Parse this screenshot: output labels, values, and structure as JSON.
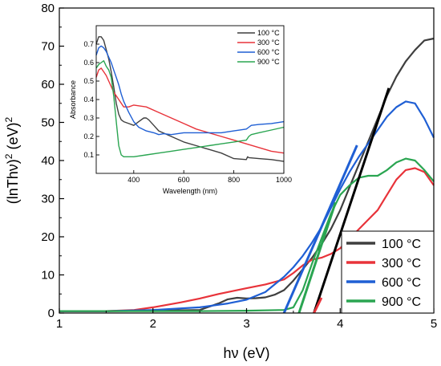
{
  "chart_data": [
    {
      "type": "line",
      "xlabel": "hν (eV)",
      "ylabel_main": "(lnThν)",
      "ylabel_sup1": "2",
      "ylabel_unit": " (eV)",
      "ylabel_sup2": "2",
      "xlim": [
        1,
        5
      ],
      "ylim": [
        0,
        80
      ],
      "xticks": [
        1,
        2,
        3,
        4,
        5
      ],
      "yticks": [
        0,
        10,
        20,
        30,
        40,
        50,
        60,
        70,
        80
      ],
      "legend_position": "bottom-right",
      "series": [
        {
          "name": "100 °C",
          "color": "#3f3f3f",
          "x": [
            1.0,
            1.5,
            2.0,
            2.5,
            2.7,
            2.8,
            2.9,
            3.0,
            3.1,
            3.2,
            3.3,
            3.4,
            3.5,
            3.6,
            3.7,
            3.8,
            3.9,
            4.0,
            4.1,
            4.2,
            4.3,
            4.4,
            4.5,
            4.6,
            4.7,
            4.8,
            4.9,
            5.0
          ],
          "y": [
            0.5,
            0.5,
            0.6,
            0.8,
            2.5,
            3.6,
            4.0,
            3.8,
            3.9,
            4.1,
            4.8,
            6.0,
            8.5,
            11.5,
            14.5,
            18.0,
            22.0,
            27.0,
            33.0,
            39.0,
            45.0,
            51.0,
            57.0,
            62.0,
            66.0,
            69.0,
            71.5,
            72.0
          ]
        },
        {
          "name": "300 °C",
          "color": "#e8333a",
          "x": [
            1.0,
            1.5,
            1.8,
            2.0,
            2.3,
            2.5,
            2.7,
            3.0,
            3.2,
            3.4,
            3.5,
            3.6,
            3.7,
            3.8,
            3.9,
            4.0,
            4.1,
            4.2,
            4.3,
            4.4,
            4.5,
            4.6,
            4.7,
            4.8,
            4.9,
            5.0
          ],
          "y": [
            0.5,
            0.5,
            0.8,
            1.5,
            2.8,
            3.8,
            5.0,
            6.5,
            7.5,
            8.8,
            10.5,
            12.5,
            14.0,
            14.5,
            15.5,
            17.0,
            19.5,
            22.0,
            24.5,
            27.0,
            31.0,
            35.0,
            37.5,
            38.0,
            37.0,
            33.5
          ]
        },
        {
          "name": "600 °C",
          "color": "#1f5fd4",
          "x": [
            1.0,
            1.5,
            2.0,
            2.5,
            2.8,
            3.0,
            3.2,
            3.3,
            3.4,
            3.5,
            3.6,
            3.7,
            3.8,
            3.9,
            4.0,
            4.1,
            4.2,
            4.3,
            4.4,
            4.5,
            4.6,
            4.7,
            4.8,
            4.9,
            5.0
          ],
          "y": [
            0.5,
            0.5,
            0.8,
            1.5,
            2.5,
            3.5,
            5.5,
            7.5,
            9.5,
            12.0,
            15.0,
            18.5,
            22.5,
            27.5,
            32.5,
            37.0,
            41.0,
            44.5,
            48.0,
            51.5,
            54.0,
            55.5,
            55.0,
            51.0,
            46.0
          ]
        },
        {
          "name": "900 °C",
          "color": "#2aa551",
          "x": [
            1.0,
            1.5,
            2.0,
            2.5,
            3.0,
            3.4,
            3.5,
            3.6,
            3.7,
            3.8,
            3.9,
            4.0,
            4.1,
            4.2,
            4.3,
            4.4,
            4.5,
            4.6,
            4.7,
            4.8,
            4.9,
            5.0
          ],
          "y": [
            0.5,
            0.5,
            0.5,
            0.5,
            0.6,
            0.8,
            1.5,
            6.0,
            13.0,
            19.5,
            26.0,
            31.0,
            33.5,
            35.5,
            36.0,
            36.0,
            37.5,
            39.5,
            40.5,
            40.0,
            37.5,
            34.5
          ]
        }
      ],
      "fit_lines": [
        {
          "series": "100 °C",
          "color": "#000000",
          "x": [
            3.72,
            4.52
          ],
          "y": [
            0,
            59
          ]
        },
        {
          "series": "300 °C",
          "color": "#e8333a",
          "x": [
            3.72,
            3.8
          ],
          "y": [
            0,
            4
          ]
        },
        {
          "series": "600 °C",
          "color": "#1f5fd4",
          "x": [
            3.4,
            4.18
          ],
          "y": [
            0,
            44
          ]
        },
        {
          "series": "900 °C",
          "color": "#2aa551",
          "x": [
            3.56,
            3.95
          ],
          "y": [
            0,
            29
          ]
        }
      ]
    },
    {
      "type": "line",
      "xlabel": "Wavelength (nm)",
      "ylabel": "Absorbance",
      "xlim": [
        250,
        1000
      ],
      "ylim": [
        0,
        0.8
      ],
      "xticks": [
        400,
        600,
        800,
        1000
      ],
      "yticks": [
        0.1,
        0.2,
        0.3,
        0.4,
        0.5,
        0.6,
        0.7
      ],
      "legend_position": "top-right",
      "series": [
        {
          "name": "100 °C",
          "color": "#3f3f3f",
          "x": [
            250,
            260,
            270,
            280,
            290,
            300,
            310,
            320,
            330,
            340,
            350,
            360,
            380,
            400,
            420,
            440,
            450,
            460,
            480,
            500,
            550,
            600,
            650,
            700,
            750,
            800,
            850,
            855,
            860,
            900,
            950,
            1000
          ],
          "y": [
            0.7,
            0.74,
            0.74,
            0.72,
            0.67,
            0.62,
            0.55,
            0.47,
            0.38,
            0.32,
            0.29,
            0.28,
            0.27,
            0.26,
            0.28,
            0.3,
            0.3,
            0.29,
            0.26,
            0.23,
            0.2,
            0.17,
            0.15,
            0.13,
            0.11,
            0.08,
            0.075,
            0.09,
            0.085,
            0.08,
            0.075,
            0.065
          ]
        },
        {
          "name": "300 °C",
          "color": "#e8333a",
          "x": [
            250,
            260,
            270,
            280,
            290,
            300,
            310,
            320,
            330,
            340,
            350,
            360,
            370,
            380,
            400,
            450,
            500,
            550,
            600,
            650,
            700,
            750,
            800,
            850,
            900,
            950,
            1000
          ],
          "y": [
            0.52,
            0.56,
            0.57,
            0.55,
            0.53,
            0.5,
            0.47,
            0.44,
            0.42,
            0.4,
            0.38,
            0.36,
            0.36,
            0.36,
            0.37,
            0.36,
            0.33,
            0.3,
            0.27,
            0.24,
            0.22,
            0.2,
            0.18,
            0.16,
            0.14,
            0.12,
            0.11
          ]
        },
        {
          "name": "600 °C",
          "color": "#1f5fd4",
          "x": [
            250,
            260,
            270,
            280,
            290,
            300,
            310,
            320,
            330,
            340,
            350,
            360,
            380,
            400,
            420,
            450,
            480,
            500,
            520,
            550,
            600,
            650,
            700,
            750,
            800,
            850,
            860,
            870,
            900,
            950,
            1000
          ],
          "y": [
            0.64,
            0.68,
            0.69,
            0.68,
            0.66,
            0.63,
            0.6,
            0.56,
            0.52,
            0.48,
            0.43,
            0.39,
            0.33,
            0.28,
            0.25,
            0.23,
            0.22,
            0.21,
            0.215,
            0.21,
            0.22,
            0.22,
            0.22,
            0.22,
            0.23,
            0.24,
            0.25,
            0.26,
            0.265,
            0.27,
            0.28
          ]
        },
        {
          "name": "900 °C",
          "color": "#2aa551",
          "x": [
            250,
            260,
            270,
            280,
            290,
            300,
            310,
            320,
            330,
            340,
            350,
            360,
            380,
            400,
            450,
            500,
            550,
            600,
            650,
            700,
            750,
            800,
            850,
            860,
            870,
            900,
            950,
            1000
          ],
          "y": [
            0.57,
            0.59,
            0.6,
            0.61,
            0.58,
            0.56,
            0.52,
            0.42,
            0.28,
            0.15,
            0.1,
            0.09,
            0.09,
            0.09,
            0.1,
            0.11,
            0.12,
            0.13,
            0.14,
            0.15,
            0.16,
            0.17,
            0.18,
            0.2,
            0.21,
            0.22,
            0.235,
            0.25
          ]
        }
      ]
    }
  ]
}
